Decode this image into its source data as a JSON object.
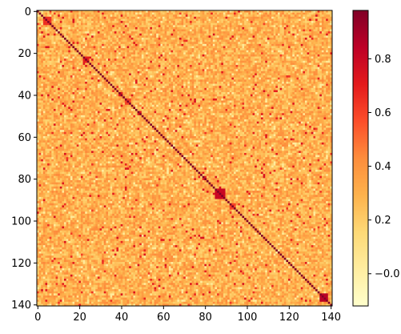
{
  "chart_data": {
    "type": "heatmap",
    "title": "",
    "xlabel": "",
    "ylabel": "",
    "size": 141,
    "x_range": [
      0,
      140
    ],
    "y_range": [
      0,
      140
    ],
    "x_ticks": [
      "0",
      "20",
      "40",
      "60",
      "80",
      "100",
      "120",
      "140"
    ],
    "y_ticks": [
      "0",
      "20",
      "40",
      "60",
      "80",
      "100",
      "120",
      "140"
    ],
    "x_tick_values": [
      0,
      20,
      40,
      60,
      80,
      100,
      120,
      140
    ],
    "y_tick_values": [
      0,
      20,
      40,
      60,
      80,
      100,
      120,
      140
    ],
    "diagonal_value": 0.98,
    "background_range": [
      0.15,
      0.45
    ],
    "blocks": [
      {
        "start": 3,
        "end": 6,
        "value": 0.65
      },
      {
        "start": 22,
        "end": 24,
        "value": 0.7
      },
      {
        "start": 42,
        "end": 44,
        "value": 0.6
      },
      {
        "start": 85,
        "end": 89,
        "value": 0.8
      },
      {
        "start": 92,
        "end": 94,
        "value": 0.6
      },
      {
        "start": 135,
        "end": 138,
        "value": 0.85
      }
    ],
    "colorbar": {
      "colormap": "YlOrRd",
      "range": [
        -0.12,
        0.98
      ],
      "ticks": [
        "−0.0",
        "0.2",
        "0.4",
        "0.6",
        "0.8"
      ],
      "tick_values": [
        0.0,
        0.2,
        0.4,
        0.6,
        0.8
      ]
    },
    "grid": false,
    "legend": "none"
  }
}
